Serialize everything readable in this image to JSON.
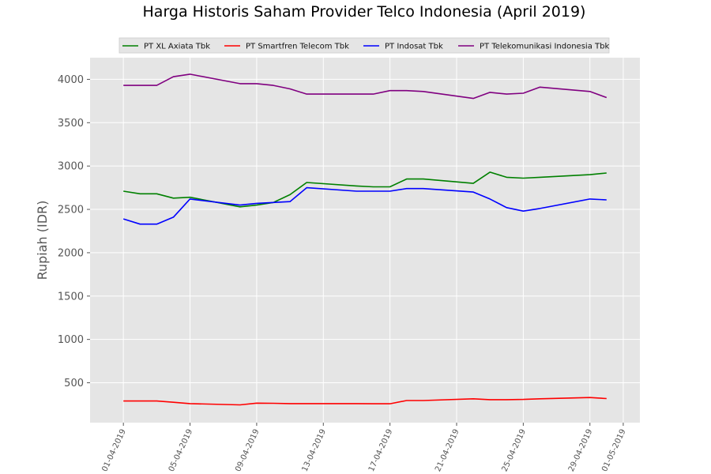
{
  "chart_data": {
    "type": "line",
    "title": "Harga Historis Saham Provider Telco Indonesia (April 2019)",
    "xlabel": "",
    "ylabel": "Rupiah (IDR)",
    "x_axis_type": "date",
    "xlim": [
      "2019-03-30",
      "2019-05-02"
    ],
    "ylim": [
      40,
      4250
    ],
    "grid": true,
    "legend_position": "top-center",
    "x_ticks": [
      "2019-04-01",
      "2019-04-05",
      "2019-04-09",
      "2019-04-13",
      "2019-04-17",
      "2019-04-21",
      "2019-04-25",
      "2019-04-29",
      "2019-05-01"
    ],
    "x_tick_labels": [
      "01-04-2019",
      "05-04-2019",
      "09-04-2019",
      "13-04-2019",
      "17-04-2019",
      "21-04-2019",
      "25-04-2019",
      "29-04-2019",
      "01-05-2019"
    ],
    "y_ticks": [
      500,
      1000,
      1500,
      2000,
      2500,
      3000,
      3500,
      4000
    ],
    "x": [
      "2019-04-01",
      "2019-04-02",
      "2019-04-03",
      "2019-04-04",
      "2019-04-05",
      "2019-04-08",
      "2019-04-09",
      "2019-04-10",
      "2019-04-11",
      "2019-04-12",
      "2019-04-15",
      "2019-04-16",
      "2019-04-17",
      "2019-04-18",
      "2019-04-19",
      "2019-04-22",
      "2019-04-23",
      "2019-04-24",
      "2019-04-25",
      "2019-04-26",
      "2019-04-29",
      "2019-04-30"
    ],
    "series": [
      {
        "name": "PT XL Axiata Tbk",
        "color": "#008000",
        "values": [
          2710,
          2680,
          2680,
          2630,
          2640,
          2530,
          2550,
          2580,
          2670,
          2810,
          2770,
          2760,
          2760,
          2850,
          2850,
          2800,
          2930,
          2870,
          2860,
          2870,
          2900,
          2920
        ]
      },
      {
        "name": "PT Smartfren Telecom Tbk",
        "color": "#ff0000",
        "values": [
          290,
          290,
          290,
          275,
          260,
          245,
          265,
          263,
          260,
          260,
          260,
          258,
          258,
          295,
          295,
          315,
          305,
          305,
          308,
          315,
          330,
          318
        ]
      },
      {
        "name": "PT Indosat Tbk",
        "color": "#0000ff",
        "values": [
          2390,
          2330,
          2330,
          2410,
          2620,
          2550,
          2570,
          2580,
          2590,
          2750,
          2710,
          2710,
          2710,
          2740,
          2740,
          2700,
          2620,
          2520,
          2480,
          2510,
          2620,
          2610
        ]
      },
      {
        "name": "PT Telekomunikasi Indonesia Tbk",
        "color": "#800080",
        "values": [
          3930,
          3930,
          3930,
          4030,
          4060,
          3950,
          3950,
          3930,
          3890,
          3830,
          3830,
          3830,
          3870,
          3870,
          3860,
          3780,
          3850,
          3830,
          3840,
          3910,
          3860,
          3790
        ]
      }
    ]
  }
}
